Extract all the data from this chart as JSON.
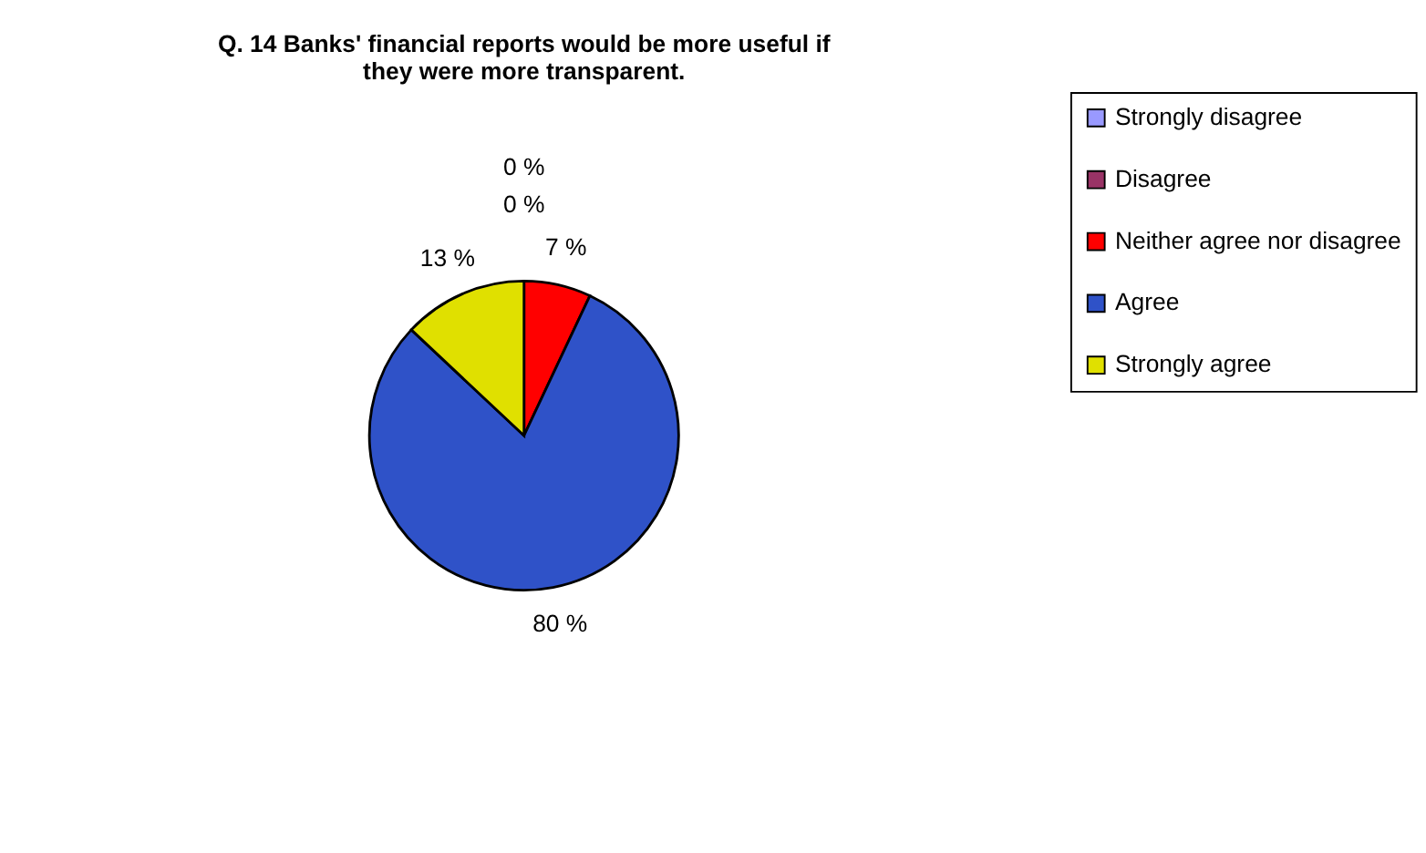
{
  "chart_data": {
    "type": "pie",
    "title": [
      "Q. 14 Banks' financial reports would be more useful if",
      "they were more transparent."
    ],
    "categories": [
      "Strongly disagree",
      "Disagree",
      "Neither agree nor disagree",
      "Agree",
      "Strongly agree"
    ],
    "values": [
      0,
      0,
      7,
      80,
      13
    ],
    "colors": [
      "#9999ff",
      "#993366",
      "#ff0000",
      "#2f52c8",
      "#e0e000"
    ],
    "value_labels": [
      "0 %",
      "0 %",
      "7 %",
      "80 %",
      "13 %"
    ],
    "legend": "right"
  }
}
